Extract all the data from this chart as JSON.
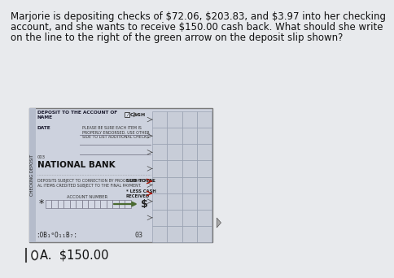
{
  "question_text_line1": "Marjorie is depositing checks of $72.06, $203.83, and $3.97 into her checking",
  "question_text_line2": "account, and she wants to receive $150.00 cash back. What should she write",
  "question_text_line3": "on the line to the right of the green arrow on the deposit slip shown?",
  "bg_color": "#e8eaed",
  "slip_bg": "#cdd2de",
  "slip_border": "#7a7a7a",
  "left_strip_color": "#b5bccb",
  "title_line1": "DEPOSIT TO THE ACCOUNT OF",
  "title_line2": "NAME",
  "date_label": "DATE",
  "please_text_line1": "PLEASE BE SURE EACH ITEM IS",
  "please_text_line2": "PROPERLY ENDORSED. USE OTHER",
  "please_text_line3": "SIDE TO LIST ADDITIONAL CHECKS",
  "bank_num": "003",
  "bank_name": "NATIONAL BANK",
  "deposit_text1": "DEPOSITS SUBJECT TO CORRECTION BY PROOF DEPARTMENT",
  "deposit_text2": "AL ITEMS CREDITED SUBJECT TO THE FINAL PAYMENT.",
  "account_label": "ACCOUNT NUMBER",
  "micr_left": ":OB₁⁰O₁₁B₇:",
  "micr_right": "03",
  "cash_label": "CASH",
  "subtotal_label": "SUB TOTAL",
  "less_cash_line1": "* LESS CASH",
  "less_cash_line2": "RECEIVED",
  "dollar_sign": "$",
  "answer_label": "A.  $150.00",
  "slip_left_label": "CHECKING DEPOSIT",
  "grid_color": "#9099aa",
  "grid_fill": "#d0d5e0",
  "right_grid_fill": "#c8cdd8",
  "red_arrow_color": "#aa1100",
  "green_arrow_color": "#4a6a30",
  "question_fontsize": 8.5,
  "answer_fontsize": 10.5,
  "cursor_color": "#555555"
}
